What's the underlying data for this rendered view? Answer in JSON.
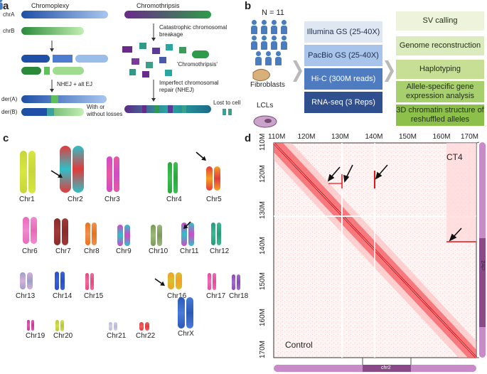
{
  "panels": {
    "a": "a",
    "b": "b",
    "c": "c",
    "d": "d"
  },
  "panel_a": {
    "chromoplexy_title": "Chromoplexy",
    "chromothripsis_title": "Chromothripsis",
    "chrA": "chrA",
    "chrB": "chrB",
    "nhej_label": "NHEJ + alt EJ",
    "derA": "der(A)",
    "derB": "der(B)",
    "losses_label": "With or without losses",
    "catastrophic_label": "Catastrophic chromosomal breakage",
    "chromothripsis_quote": "'Chromothripsis'",
    "imperfect_label": "Imperfect chromosomal repair (NHEJ)",
    "lost_label": "Lost to cell"
  },
  "panel_b": {
    "n_label": "N = 11",
    "fibroblasts": "Fibroblasts",
    "lcls": "LCLs",
    "methods": [
      "Illumina GS (25-40X)",
      "PacBio GS (25-40X)",
      "Hi-C (300M reads)",
      "RNA-seq (3 Reps)"
    ],
    "analyses": [
      "SV calling",
      "Genome reconstruction",
      "Haplotyping",
      "Allele-specific gene expression analysis",
      "3D chromatin structure of reshuffled alleles"
    ]
  },
  "panel_c": {
    "chromosomes": [
      "Chr1",
      "Chr2",
      "Chr3",
      "Chr4",
      "Chr5",
      "Chr6",
      "Chr7",
      "Chr8",
      "Chr9",
      "Chr10",
      "Chr11",
      "Chr12",
      "Chr13",
      "Chr14",
      "Chr15",
      "Chr16",
      "Chr17",
      "Chr18",
      "Chr19",
      "Chr20",
      "Chr21",
      "Chr22",
      "ChrX"
    ]
  },
  "panel_d": {
    "x_ticks": [
      "110M",
      "120M",
      "130M",
      "140M",
      "150M",
      "160M",
      "170M"
    ],
    "y_ticks": [
      "110M",
      "120M",
      "130M",
      "140M",
      "150M",
      "160M",
      "170M"
    ],
    "ct4_label": "CT4",
    "control_label": "Control",
    "chr2_right": "chr2",
    "chr2_bottom": "chr2"
  },
  "colors": {
    "hic_red": "#e8141c",
    "blue_dark": "#1f4fa6",
    "blue_light": "#8fb3e3",
    "green_dark": "#2b8a3a",
    "green_light": "#9fdc8f",
    "purple": "#6a2a8a",
    "teal": "#2aa6a0",
    "ideogram": "#c98ac9"
  }
}
